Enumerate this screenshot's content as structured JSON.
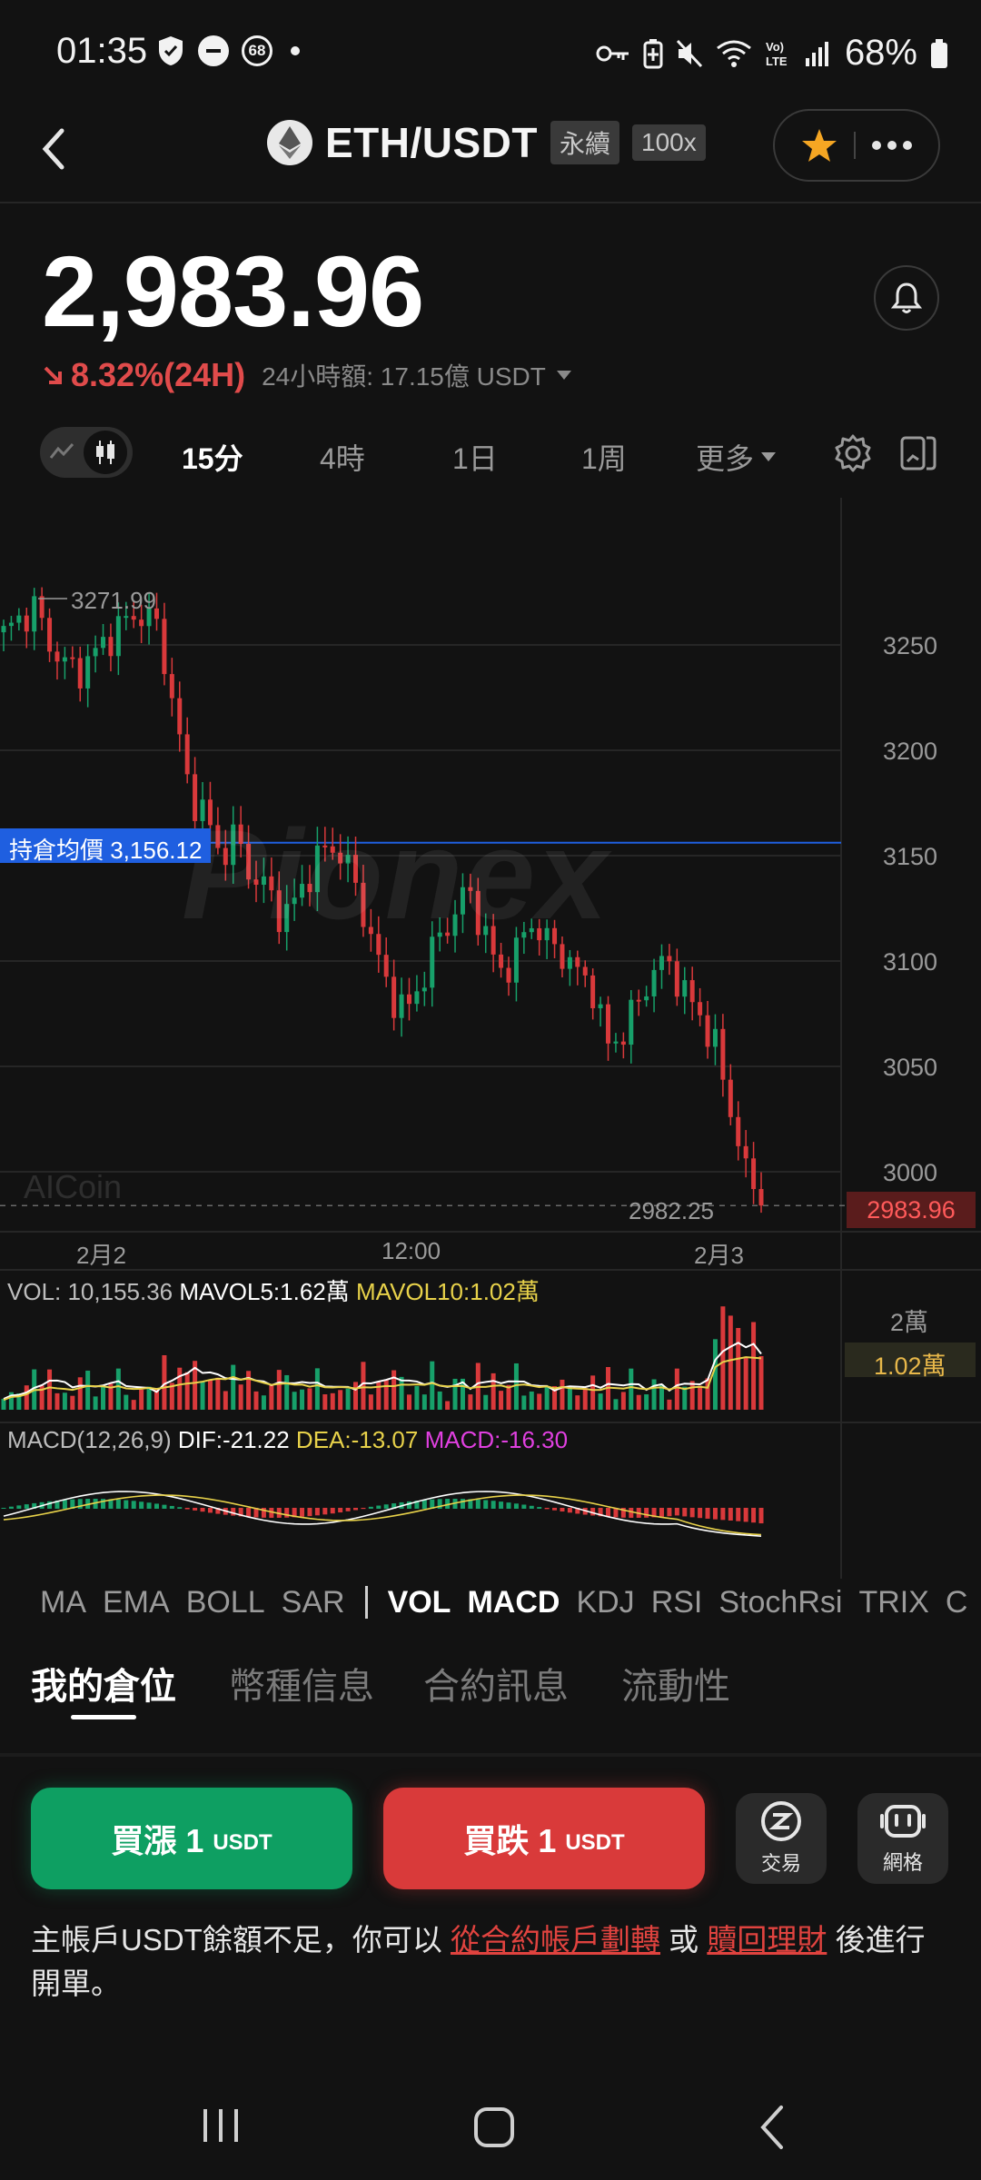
{
  "status_bar": {
    "time": "01:35",
    "notification_count": "68",
    "battery": "68%",
    "icons": [
      "shield-icon",
      "minus-circle-icon",
      "badge-68-icon",
      "dot-icon",
      "key-icon",
      "battery-saver-icon",
      "mute-icon",
      "wifi-icon",
      "volte-icon",
      "signal-icon",
      "battery-icon"
    ]
  },
  "header": {
    "pair": "ETH/USDT",
    "tag_perpetual": "永續",
    "tag_leverage": "100x"
  },
  "ticker": {
    "price": "2,983.96",
    "change": "8.32%(24H)",
    "volume_24h": "24小時額: 17.15億 USDT"
  },
  "timeframes": {
    "items": [
      "15分",
      "4時",
      "1日",
      "1周"
    ],
    "active": "15分",
    "more": "更多"
  },
  "chart": {
    "high_label": "3271.99",
    "low_label": "2982.25",
    "avg_position_label": "持倉均價 3,156.12",
    "current_price_label": "2983.96",
    "watermark": "Pionex",
    "watermark2": "AICoin",
    "y_ticks": [
      "3250",
      "3200",
      "3150",
      "3100",
      "3050",
      "3000"
    ],
    "x_ticks": [
      "2月2",
      "12:00",
      "2月3"
    ],
    "vol_axis_top": "2萬",
    "vol_axis_mid": "1.02萬",
    "vol_text": "VOL: 10,155.36",
    "mavol5_text": "MAVOL5:1.62萬",
    "mavol10_text": "MAVOL10:1.02萬",
    "macd_title": "MACD(12,26,9)",
    "dif_text": "DIF:-21.22",
    "dea_text": "DEA:-13.07",
    "macd_text": "MACD:-16.30",
    "colors": {
      "up": "#17a06a",
      "down": "#d9393b",
      "avg_line": "#1f5fe0",
      "mavol5": "#ffffff",
      "mavol10": "#e8d24a",
      "macd": "#e040e0"
    }
  },
  "chart_data": {
    "type": "candlestick",
    "title": "",
    "ylim": [
      2975,
      3290
    ],
    "y_ticks": [
      3250,
      3200,
      3150,
      3100,
      3050,
      3000
    ],
    "x_ticks": [
      "2月2",
      "12:00",
      "2月3"
    ],
    "high": 3271.99,
    "low": 2982.25,
    "average_position": 3156.12,
    "last": 2983.96,
    "close_path": [
      3255,
      3262,
      3268,
      3250,
      3240,
      3238,
      3247,
      3255,
      3262,
      3265,
      3258,
      3220,
      3180,
      3170,
      3150,
      3160,
      3140,
      3135,
      3120,
      3130,
      3145,
      3155,
      3150,
      3130,
      3105,
      3085,
      3075,
      3090,
      3110,
      3120,
      3135,
      3115,
      3095,
      3100,
      3120,
      3110,
      3105,
      3095,
      3090,
      3060,
      3065,
      3080,
      3095,
      3100,
      3085,
      3075,
      3060,
      3030,
      3000,
      2984
    ],
    "indicators": {
      "VOL": 10155.36,
      "MAVOL5": "1.62萬",
      "MAVOL10": "1.02萬",
      "DIF": -21.22,
      "DEA": -13.07,
      "MACD": -16.3
    }
  },
  "indicator_tabs": {
    "items": [
      "MA",
      "EMA",
      "BOLL",
      "SAR",
      "VOL",
      "MACD",
      "KDJ",
      "RSI",
      "StochRsi",
      "TRIX",
      "C"
    ],
    "active": [
      "VOL",
      "MACD"
    ]
  },
  "section_tabs": {
    "items": [
      "我的倉位",
      "幣種信息",
      "合約訊息",
      "流動性"
    ],
    "active": "我的倉位"
  },
  "actions": {
    "buy_label": "買漲 1",
    "buy_unit": "USDT",
    "sell_label": "買跌 1",
    "sell_unit": "USDT",
    "trade_label": "交易",
    "grid_label": "網格"
  },
  "notice": {
    "part1": "主帳戶USDT餘額不足，你可以 ",
    "link1": "從合約帳戶劃轉",
    "part2": " 或 ",
    "link2": "贖回理財",
    "part3": " 後進行開單。"
  }
}
